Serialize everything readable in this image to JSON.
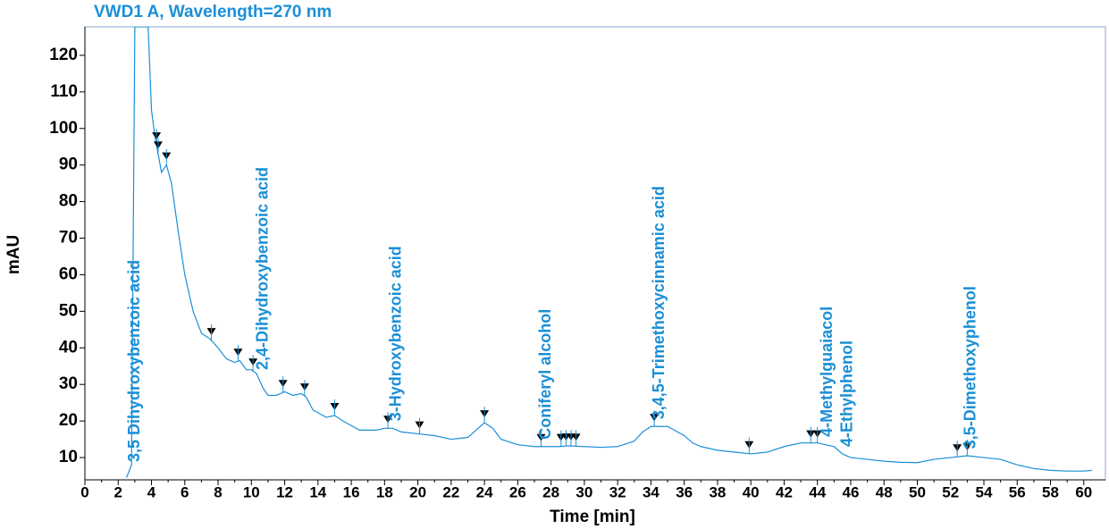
{
  "chart_data": {
    "type": "line",
    "title": "VWD1 A, Wavelength=270 nm",
    "xlabel": "Time [min]",
    "ylabel": "mAU",
    "xlim": [
      0,
      61.3
    ],
    "ylim": [
      3.9,
      127.8
    ],
    "xticks": [
      0,
      2,
      4,
      6,
      8,
      10,
      12,
      14,
      16,
      18,
      20,
      22,
      24,
      26,
      28,
      30,
      32,
      34,
      36,
      38,
      40,
      42,
      44,
      46,
      48,
      50,
      52,
      54,
      56,
      58,
      60
    ],
    "yticks": [
      10,
      20,
      30,
      40,
      50,
      60,
      70,
      80,
      90,
      100,
      110,
      120
    ],
    "series": [
      {
        "name": "VWD1 A",
        "color": "#1a8fd6",
        "x": [
          2.5,
          2.8,
          3.0,
          3.5,
          3.8,
          4.0,
          4.2,
          4.4,
          4.6,
          4.9,
          5.2,
          5.6,
          6.0,
          6.5,
          7.0,
          7.5,
          8.0,
          8.5,
          9.0,
          9.3,
          9.7,
          10.0,
          10.3,
          10.7,
          11.0,
          11.5,
          12.0,
          12.5,
          13.0,
          13.3,
          13.7,
          14.5,
          15.0,
          15.5,
          16.5,
          17.5,
          18.0,
          18.5,
          19.0,
          20.0,
          21.0,
          22.0,
          23.0,
          23.5,
          24.0,
          24.5,
          25.0,
          26.0,
          27.0,
          28.0,
          28.5,
          29.0,
          30.0,
          31.0,
          32.0,
          33.0,
          33.5,
          34.0,
          35.0,
          36.0,
          36.5,
          37.0,
          38.0,
          39.0,
          40.0,
          41.0,
          42.0,
          43.0,
          44.0,
          45.0,
          45.5,
          46.0,
          47.0,
          48.0,
          49.0,
          50.0,
          51.0,
          52.0,
          53.0,
          54.0,
          55.0,
          56.0,
          57.0,
          58.0,
          59.0,
          60.0,
          60.5
        ],
        "values": [
          4.5,
          8,
          127.8,
          127.8,
          127.8,
          105,
          98,
          93,
          88,
          90,
          85,
          72,
          60,
          50,
          44,
          42.5,
          40,
          37,
          36,
          36.5,
          34,
          34,
          33,
          29,
          27,
          27,
          28,
          27,
          27.5,
          26.5,
          23,
          21,
          21.5,
          20,
          17.5,
          17.5,
          18,
          18,
          17,
          16.5,
          16,
          15,
          15.5,
          17.5,
          19.5,
          18,
          15,
          13.5,
          13,
          13,
          13,
          13.2,
          13,
          12.8,
          13,
          14.5,
          17,
          18.5,
          18.5,
          16,
          14,
          13,
          12,
          11.5,
          11,
          11.5,
          13,
          14,
          14,
          13,
          11,
          10,
          9.5,
          9,
          8.7,
          8.6,
          9.5,
          10,
          10.5,
          10,
          9.5,
          8,
          7,
          6.5,
          6.3,
          6.3,
          6.5
        ]
      }
    ],
    "peak_markers": {
      "x": [
        4.3,
        4.4,
        4.9,
        7.6,
        9.2,
        10.1,
        11.9,
        13.2,
        15.0,
        18.2,
        20.1,
        24.0,
        27.4,
        28.6,
        28.9,
        29.2,
        29.5,
        34.2,
        39.9,
        43.6,
        44.0,
        52.4,
        53.0
      ]
    },
    "annotations": [
      {
        "text": "3,5 Dihydroxybenzoic acid",
        "x": 2.7
      },
      {
        "text": "2,4-Dihydroxybenzoic acid",
        "x": 10.4
      },
      {
        "text": "3-Hydroxybenzoic acid",
        "x": 18.4
      },
      {
        "text": "Coniferyl alcohol",
        "x": 27.4
      },
      {
        "text": "3,4,5-Trimethoxycinnamic acid",
        "x": 34.2
      },
      {
        "text": "4-Methylguaiacol",
        "x": 44.3
      },
      {
        "text": "4-Ethylphenol",
        "x": 45.5
      },
      {
        "text": "3,5-Dimethoxyphenol",
        "x": 52.9
      }
    ]
  }
}
